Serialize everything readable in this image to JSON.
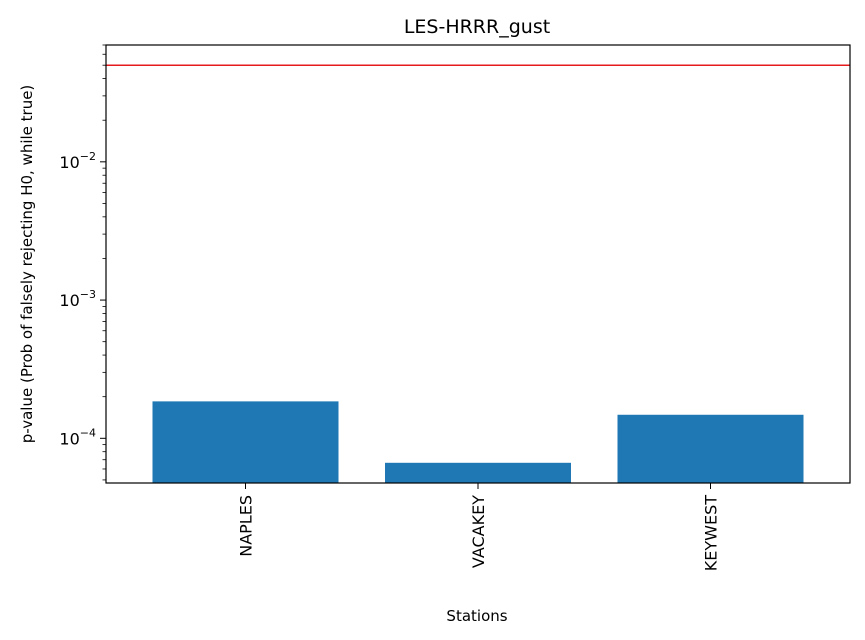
{
  "chart_data": {
    "type": "bar",
    "title": "LES-HRRR_gust",
    "xlabel": "Stations",
    "ylabel": "p-value (Prob of falsely rejecting H0, while true)",
    "yscale": "log",
    "ylim": [
      4.75e-05,
      0.07
    ],
    "categories": [
      "NAPLES",
      "VACAKEY",
      "KEYWEST"
    ],
    "values": [
      0.000185,
      6.65e-05,
      0.000148
    ],
    "y_ticks": [
      {
        "value": 0.0001,
        "base": "10",
        "exp": "−4"
      },
      {
        "value": 0.001,
        "base": "10",
        "exp": "−3"
      },
      {
        "value": 0.01,
        "base": "10",
        "exp": "−2"
      }
    ],
    "reference_line": {
      "value": 0.05
    },
    "colors": {
      "bar": "#1f77b4",
      "reference_line": "#e41a1c"
    },
    "grid": false,
    "legend": "none"
  }
}
